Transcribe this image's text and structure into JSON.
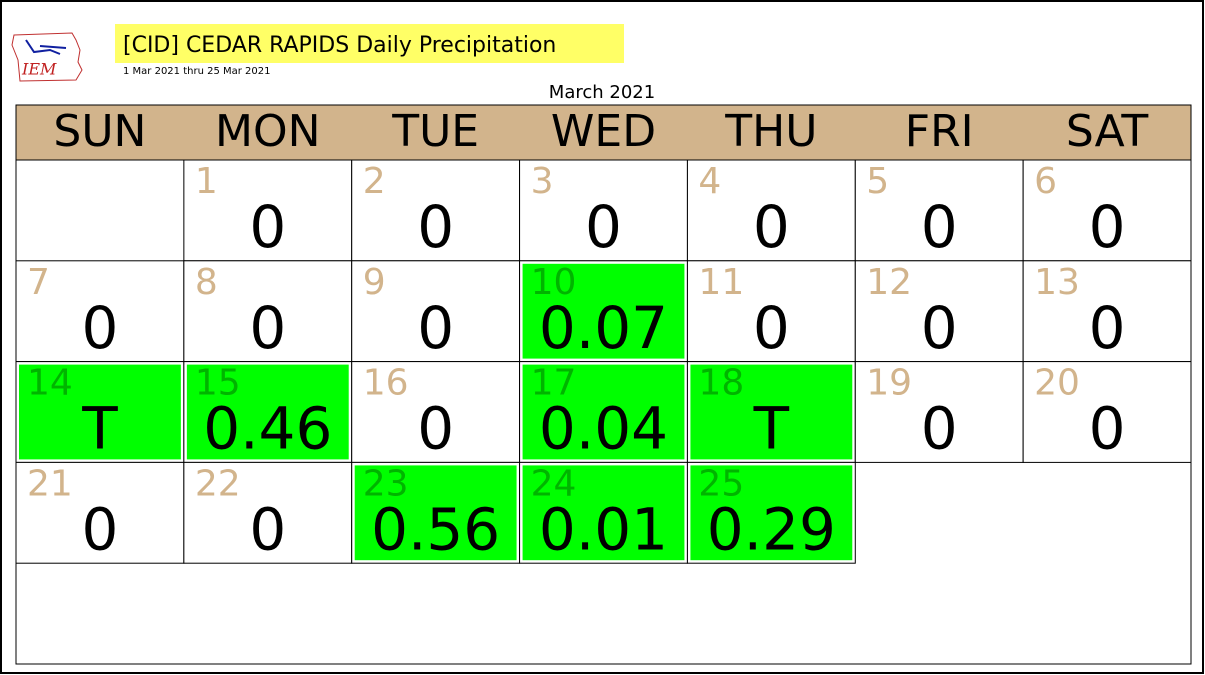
{
  "header": {
    "title": "[CID] CEDAR RAPIDS Daily Precipitation",
    "subtitle": "1 Mar 2021 thru 25 Mar 2021",
    "logo": "IEM"
  },
  "calendar": {
    "month": "March 2021",
    "weekdays": [
      "SUN",
      "MON",
      "TUE",
      "WED",
      "THU",
      "FRI",
      "SAT"
    ],
    "highlight_color": "#00ff00",
    "days": [
      {
        "day": 1,
        "value": "0"
      },
      {
        "day": 2,
        "value": "0"
      },
      {
        "day": 3,
        "value": "0"
      },
      {
        "day": 4,
        "value": "0"
      },
      {
        "day": 5,
        "value": "0"
      },
      {
        "day": 6,
        "value": "0"
      },
      {
        "day": 7,
        "value": "0"
      },
      {
        "day": 8,
        "value": "0"
      },
      {
        "day": 9,
        "value": "0"
      },
      {
        "day": 10,
        "value": "0.07"
      },
      {
        "day": 11,
        "value": "0"
      },
      {
        "day": 12,
        "value": "0"
      },
      {
        "day": 13,
        "value": "0"
      },
      {
        "day": 14,
        "value": "T"
      },
      {
        "day": 15,
        "value": "0.46"
      },
      {
        "day": 16,
        "value": "0"
      },
      {
        "day": 17,
        "value": "0.04"
      },
      {
        "day": 18,
        "value": "T"
      },
      {
        "day": 19,
        "value": "0"
      },
      {
        "day": 20,
        "value": "0"
      },
      {
        "day": 21,
        "value": "0"
      },
      {
        "day": 22,
        "value": "0"
      },
      {
        "day": 23,
        "value": "0.56"
      },
      {
        "day": 24,
        "value": "0.01"
      },
      {
        "day": 25,
        "value": "0.29"
      }
    ]
  }
}
